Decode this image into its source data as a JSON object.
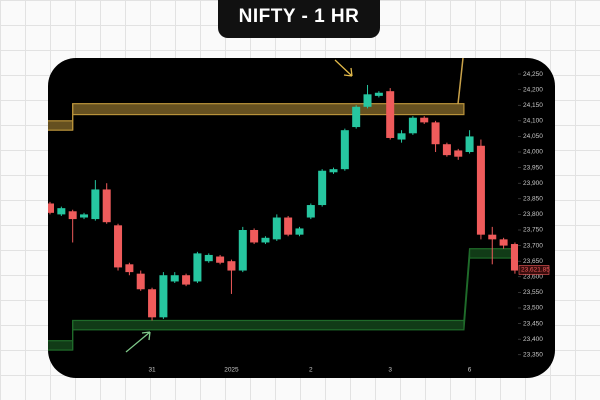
{
  "chart_data": {
    "type": "candlestick",
    "title": "NIFTY - 1 HR",
    "categories": [
      null,
      null,
      null,
      null,
      null,
      null,
      null,
      null,
      null,
      "31",
      null,
      null,
      null,
      null,
      null,
      null,
      "2025",
      null,
      null,
      null,
      null,
      null,
      null,
      "2",
      null,
      null,
      null,
      null,
      null,
      null,
      "3",
      null,
      null,
      null,
      null,
      null,
      null,
      "6",
      null,
      null,
      null,
      null
    ],
    "open": [
      23835,
      23800,
      23810,
      23790,
      23785,
      23880,
      23765,
      23640,
      23610,
      23560,
      23470,
      23585,
      23605,
      23585,
      23650,
      23665,
      23650,
      23620,
      23750,
      23710,
      23720,
      23790,
      23735,
      23790,
      23830,
      23935,
      23945,
      24080,
      24145,
      24180,
      24195,
      24040,
      24060,
      24110,
      24095,
      24025,
      24005,
      24000,
      24020,
      23735,
      23720,
      23705
    ],
    "high": [
      23840,
      23825,
      23815,
      23805,
      23910,
      23900,
      23770,
      23645,
      23620,
      23565,
      23615,
      23615,
      23610,
      23680,
      23675,
      23670,
      23655,
      23760,
      23755,
      23730,
      23800,
      23795,
      23760,
      23835,
      23945,
      23950,
      24075,
      24150,
      24215,
      24195,
      24205,
      24070,
      24115,
      24115,
      24100,
      24030,
      24010,
      24070,
      24040,
      23760,
      23725,
      23710
    ],
    "low": [
      23800,
      23795,
      23710,
      23785,
      23780,
      23770,
      23620,
      23605,
      23555,
      23460,
      23465,
      23580,
      23570,
      23580,
      23645,
      23640,
      23545,
      23615,
      23705,
      23705,
      23715,
      23730,
      23730,
      23785,
      23825,
      23930,
      23940,
      24075,
      24140,
      24175,
      24040,
      24030,
      24055,
      24090,
      24000,
      23985,
      23975,
      23995,
      23720,
      23640,
      23690,
      23610
    ],
    "close": [
      23805,
      23820,
      23785,
      23800,
      23880,
      23775,
      23630,
      23615,
      23560,
      23470,
      23605,
      23605,
      23575,
      23675,
      23670,
      23645,
      23620,
      23750,
      23710,
      23725,
      23790,
      23735,
      23755,
      23830,
      23940,
      23945,
      24070,
      24145,
      24185,
      24190,
      24045,
      24060,
      24110,
      24095,
      24025,
      23990,
      23985,
      24050,
      23735,
      23720,
      23700,
      23620
    ],
    "up_color": "#26c6a0",
    "down_color": "#ef5b5b",
    "ylim": [
      23330,
      24270
    ],
    "yticks": [
      {
        "value": 23350,
        "label": "23,350"
      },
      {
        "value": 23400,
        "label": "23,400"
      },
      {
        "value": 23450,
        "label": "23,450"
      },
      {
        "value": 23500,
        "label": "23,500"
      },
      {
        "value": 23550,
        "label": "23,550"
      },
      {
        "value": 23600,
        "label": "23,600"
      },
      {
        "value": 23650,
        "label": "23,650"
      },
      {
        "value": 23700,
        "label": "23,700"
      },
      {
        "value": 23750,
        "label": "23,750"
      },
      {
        "value": 23800,
        "label": "23,800"
      },
      {
        "value": 23850,
        "label": "23,850"
      },
      {
        "value": 23900,
        "label": "23,900"
      },
      {
        "value": 23950,
        "label": "23,950"
      },
      {
        "value": 24000,
        "label": "24,000"
      },
      {
        "value": 24050,
        "label": "24,050"
      },
      {
        "value": 24100,
        "label": "24,100"
      },
      {
        "value": 24150,
        "label": "24,150"
      },
      {
        "value": 24200,
        "label": "24,200"
      },
      {
        "value": 24250,
        "label": "24,250"
      }
    ],
    "last_price": {
      "value": 23621.85,
      "label": "23,621.85"
    },
    "bands": [
      {
        "color": "#b8923a",
        "pieces": [
          {
            "x": [
              -1,
              2
            ],
            "low": 24070,
            "high": 24100
          },
          {
            "x": [
              2,
              36.5
            ],
            "low": 24120,
            "high": 24155
          }
        ]
      },
      {
        "color": "#1f6b2a",
        "pieces": [
          {
            "x": [
              -1,
              2
            ],
            "low": 23365,
            "high": 23395
          },
          {
            "x": [
              2,
              36.5
            ],
            "low": 23430,
            "high": 23460
          },
          {
            "x": [
              37,
              42
            ],
            "low": 23660,
            "high": 23690
          }
        ]
      }
    ]
  }
}
